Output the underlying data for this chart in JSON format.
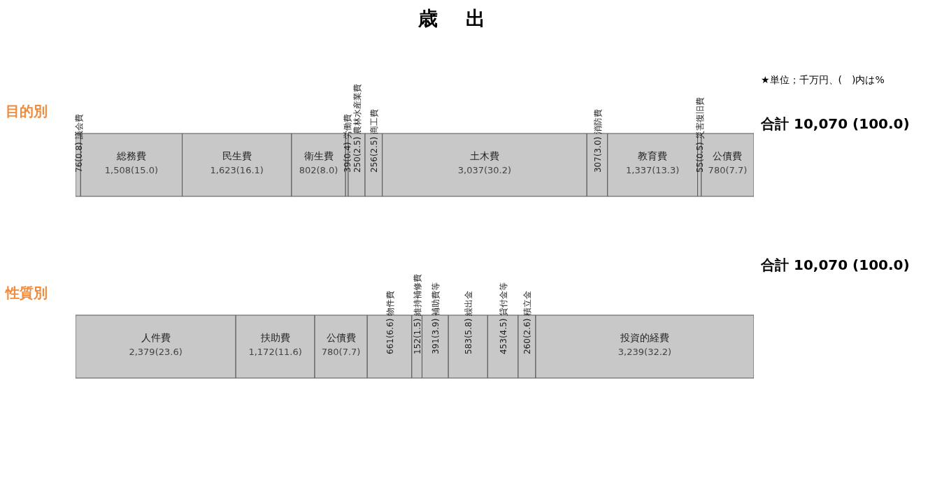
{
  "chart_data": [
    {
      "type": "bar",
      "title": "歳出",
      "subtitle": "目的別",
      "orientation": "horizontal",
      "stacked": true,
      "categories": [
        null
      ],
      "xlim": [
        0,
        10070
      ],
      "tick_labels": false,
      "annotations": [
        "★単位；千万円、(　)内は%",
        "合計 10,070 (100.0)"
      ],
      "series": [
        {
          "name": "議会費",
          "color": "#c8c8c8",
          "values": [
            76
          ],
          "value_labels": [
            "76(0.8)"
          ]
        },
        {
          "name": "総務費",
          "color": "#c8c8c8",
          "values": [
            1508
          ],
          "value_labels": [
            "1,508(15.0)"
          ]
        },
        {
          "name": "民生費",
          "color": "#c8c8c8",
          "values": [
            1623
          ],
          "value_labels": [
            "1,623(16.1)"
          ]
        },
        {
          "name": "衛生費",
          "color": "#c8c8c8",
          "values": [
            802
          ],
          "value_labels": [
            "802(8.0)"
          ]
        },
        {
          "name": "労働費",
          "color": "#c8c8c8",
          "values": [
            39
          ],
          "value_labels": [
            "39(0.4)"
          ]
        },
        {
          "name": "農林水産業費",
          "color": "#c8c8c8",
          "values": [
            250
          ],
          "value_labels": [
            "250(2.5)"
          ]
        },
        {
          "name": "商工費",
          "color": "#c8c8c8",
          "values": [
            256
          ],
          "value_labels": [
            "256(2.5)"
          ]
        },
        {
          "name": "土木費",
          "color": "#c8c8c8",
          "values": [
            3037
          ],
          "value_labels": [
            "3,037(30.2)"
          ]
        },
        {
          "name": "消防費",
          "color": "#c8c8c8",
          "values": [
            307
          ],
          "value_labels": [
            "307(3.0)"
          ]
        },
        {
          "name": "教育費",
          "color": "#c8c8c8",
          "values": [
            1337
          ],
          "value_labels": [
            "1,337(13.3)"
          ]
        },
        {
          "name": "災害復旧費",
          "color": "#c8c8c8",
          "values": [
            55
          ],
          "value_labels": [
            "55(0.5)"
          ]
        },
        {
          "name": "公債費",
          "color": "#c8c8c8",
          "values": [
            780
          ],
          "value_labels": [
            "780(7.7)"
          ]
        }
      ]
    },
    {
      "type": "bar",
      "subtitle": "性質別",
      "orientation": "horizontal",
      "stacked": true,
      "categories": [
        null
      ],
      "xlim": [
        0,
        10070
      ],
      "tick_labels": false,
      "annotations": [
        "合計 10,070 (100.0)"
      ],
      "series": [
        {
          "name": "人件費",
          "color": "#c8c8c8",
          "values": [
            2379
          ],
          "value_labels": [
            "2,379(23.6)"
          ]
        },
        {
          "name": "扶助費",
          "color": "#c8c8c8",
          "values": [
            1172
          ],
          "value_labels": [
            "1,172(11.6)"
          ]
        },
        {
          "name": "公債費",
          "color": "#c8c8c8",
          "values": [
            780
          ],
          "value_labels": [
            "780(7.7)"
          ]
        },
        {
          "name": "物件費",
          "color": "#c8c8c8",
          "values": [
            661
          ],
          "value_labels": [
            "661(6.6)"
          ]
        },
        {
          "name": "維持補修費",
          "color": "#c8c8c8",
          "values": [
            152
          ],
          "value_labels": [
            "152(1.5)"
          ]
        },
        {
          "name": "補助費等",
          "color": "#c8c8c8",
          "values": [
            391
          ],
          "value_labels": [
            "391(3.9)"
          ]
        },
        {
          "name": "繰出金",
          "color": "#c8c8c8",
          "values": [
            583
          ],
          "value_labels": [
            "583(5.8)"
          ]
        },
        {
          "name": "貸付金等",
          "color": "#c8c8c8",
          "values": [
            453
          ],
          "value_labels": [
            "453(4.5)"
          ]
        },
        {
          "name": "積立金",
          "color": "#c8c8c8",
          "values": [
            260
          ],
          "value_labels": [
            "260(2.6)"
          ]
        },
        {
          "name": "投資的経費",
          "color": "#c8c8c8",
          "values": [
            3239
          ],
          "value_labels": [
            "3,239(32.2)"
          ]
        }
      ]
    }
  ]
}
